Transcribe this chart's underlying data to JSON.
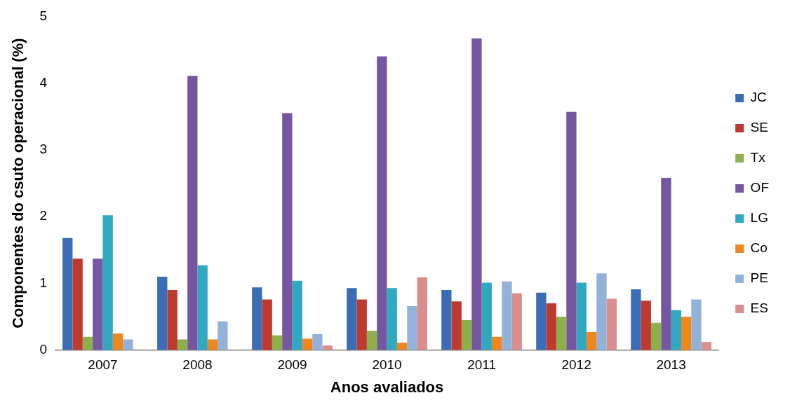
{
  "chart_data": {
    "type": "bar",
    "xlabel": "Anos avaliados",
    "ylabel": "Componentes do csuto operacional (%)",
    "categories": [
      "2007",
      "2008",
      "2009",
      "2010",
      "2011",
      "2012",
      "2013"
    ],
    "ylim": [
      0,
      5
    ],
    "yticks": [
      0,
      1,
      2,
      3,
      4,
      5
    ],
    "grid": false,
    "legend": "right",
    "series": [
      {
        "name": "JC",
        "color": "#3a6db5",
        "values": [
          1.68,
          1.1,
          0.94,
          0.93,
          0.9,
          0.86,
          0.91
        ]
      },
      {
        "name": "SE",
        "color": "#c0392f",
        "values": [
          1.37,
          0.9,
          0.76,
          0.76,
          0.73,
          0.7,
          0.74
        ]
      },
      {
        "name": "Tx",
        "color": "#8db04a",
        "values": [
          0.2,
          0.16,
          0.22,
          0.29,
          0.45,
          0.5,
          0.41
        ]
      },
      {
        "name": "OF",
        "color": "#7556a0",
        "values": [
          1.37,
          4.11,
          3.55,
          4.4,
          4.67,
          3.57,
          2.58
        ]
      },
      {
        "name": "LG",
        "color": "#2fa8c0",
        "values": [
          2.02,
          1.27,
          1.04,
          0.93,
          1.01,
          1.01,
          0.6
        ]
      },
      {
        "name": "Co",
        "color": "#f0861e",
        "values": [
          0.25,
          0.16,
          0.17,
          0.11,
          0.2,
          0.27,
          0.5
        ]
      },
      {
        "name": "PE",
        "color": "#93b2da",
        "values": [
          0.16,
          0.43,
          0.24,
          0.66,
          1.03,
          1.15,
          0.76
        ]
      },
      {
        "name": "ES",
        "color": "#d98d8c",
        "values": [
          null,
          null,
          0.07,
          1.09,
          0.85,
          0.77,
          0.12
        ]
      }
    ]
  }
}
